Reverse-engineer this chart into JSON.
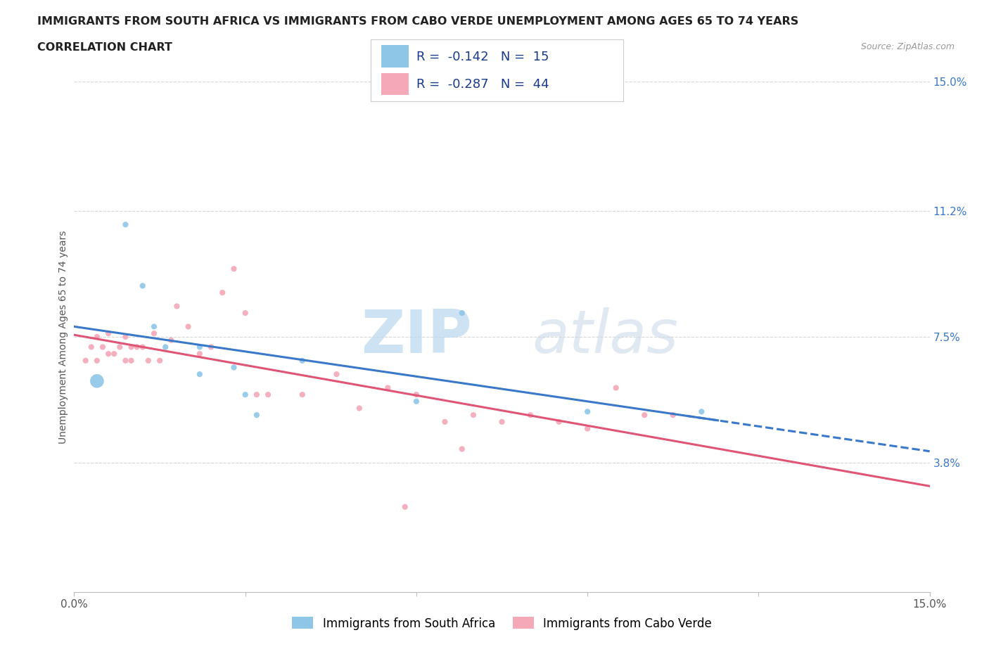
{
  "title_line1": "IMMIGRANTS FROM SOUTH AFRICA VS IMMIGRANTS FROM CABO VERDE UNEMPLOYMENT AMONG AGES 65 TO 74 YEARS",
  "title_line2": "CORRELATION CHART",
  "source_text": "Source: ZipAtlas.com",
  "ylabel": "Unemployment Among Ages 65 to 74 years",
  "xlim": [
    0.0,
    0.15
  ],
  "ylim": [
    0.0,
    0.15
  ],
  "ytick_vals_right": [
    0.15,
    0.112,
    0.075,
    0.038
  ],
  "watermark_zip": "ZIP",
  "watermark_atlas": "atlas",
  "r_south_africa": -0.142,
  "n_south_africa": 15,
  "r_cabo_verde": -0.287,
  "n_cabo_verde": 44,
  "color_south_africa": "#8ec6e8",
  "color_cabo_verde": "#f4a8b8",
  "trendline_color_south_africa": "#3a78c9",
  "trendline_color_cabo_verde": "#e05575",
  "background_color": "#ffffff",
  "grid_color": "#cccccc",
  "south_africa_x": [
    0.004,
    0.009,
    0.012,
    0.014,
    0.016,
    0.022,
    0.028,
    0.03,
    0.032,
    0.04,
    0.06,
    0.068,
    0.09,
    0.11,
    0.022
  ],
  "south_africa_y": [
    0.062,
    0.108,
    0.09,
    0.078,
    0.072,
    0.072,
    0.066,
    0.058,
    0.052,
    0.068,
    0.056,
    0.082,
    0.053,
    0.053,
    0.064
  ],
  "south_africa_size": [
    200,
    35,
    35,
    35,
    35,
    35,
    35,
    35,
    35,
    35,
    35,
    35,
    35,
    35,
    35
  ],
  "cabo_verde_x": [
    0.002,
    0.003,
    0.004,
    0.004,
    0.005,
    0.006,
    0.006,
    0.007,
    0.008,
    0.009,
    0.009,
    0.01,
    0.01,
    0.011,
    0.012,
    0.013,
    0.014,
    0.015,
    0.017,
    0.018,
    0.02,
    0.022,
    0.024,
    0.026,
    0.028,
    0.03,
    0.032,
    0.034,
    0.04,
    0.046,
    0.05,
    0.055,
    0.06,
    0.065,
    0.068,
    0.07,
    0.075,
    0.08,
    0.085,
    0.09,
    0.095,
    0.1,
    0.105,
    0.058
  ],
  "cabo_verde_y": [
    0.068,
    0.072,
    0.068,
    0.075,
    0.072,
    0.07,
    0.076,
    0.07,
    0.072,
    0.068,
    0.075,
    0.072,
    0.068,
    0.072,
    0.072,
    0.068,
    0.076,
    0.068,
    0.074,
    0.084,
    0.078,
    0.07,
    0.072,
    0.088,
    0.095,
    0.082,
    0.058,
    0.058,
    0.058,
    0.064,
    0.054,
    0.06,
    0.058,
    0.05,
    0.042,
    0.052,
    0.05,
    0.052,
    0.05,
    0.048,
    0.06,
    0.052,
    0.052,
    0.025
  ],
  "cabo_verde_size": [
    35,
    35,
    35,
    35,
    35,
    35,
    35,
    35,
    35,
    35,
    35,
    35,
    35,
    35,
    35,
    35,
    35,
    35,
    35,
    35,
    35,
    35,
    35,
    35,
    35,
    35,
    35,
    35,
    35,
    35,
    35,
    35,
    35,
    35,
    35,
    35,
    35,
    35,
    35,
    35,
    35,
    35,
    35,
    35
  ],
  "legend_label_sa": "Immigrants from South Africa",
  "legend_label_cv": "Immigrants from Cabo Verde",
  "title_fontsize": 11.5,
  "axis_label_fontsize": 10,
  "tick_fontsize": 11,
  "legend_fontsize": 12
}
